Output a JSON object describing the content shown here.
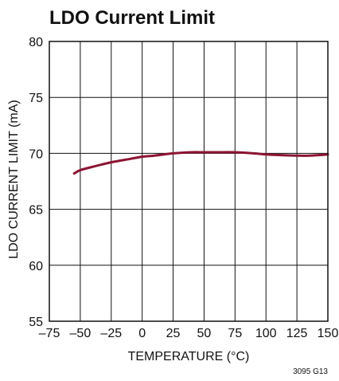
{
  "chart_data": {
    "type": "line",
    "title": "LDO Current Limit",
    "xlabel": "TEMPERATURE (°C)",
    "ylabel": "LDO CURRENT LIMIT (mA)",
    "xlim": [
      -75,
      150
    ],
    "ylim": [
      55,
      80
    ],
    "x_ticks": [
      -75,
      -50,
      -25,
      0,
      25,
      50,
      75,
      100,
      125,
      150
    ],
    "x_tick_labels": [
      "–75",
      "–50",
      "–25",
      "0",
      "25",
      "50",
      "75",
      "100",
      "125",
      "150"
    ],
    "y_ticks": [
      55,
      60,
      65,
      70,
      75,
      80
    ],
    "y_tick_labels": [
      "55",
      "60",
      "65",
      "70",
      "75",
      "80"
    ],
    "grid": true,
    "legend": "none",
    "series": [
      {
        "color": "#8c1433",
        "x": [
          -55,
          -50,
          -40,
          -25,
          -10,
          0,
          10,
          25,
          40,
          50,
          60,
          75,
          90,
          100,
          110,
          125,
          135,
          150
        ],
        "y": [
          68.2,
          68.5,
          68.8,
          69.2,
          69.5,
          69.7,
          69.8,
          70.0,
          70.1,
          70.1,
          70.1,
          70.1,
          70.0,
          69.9,
          69.85,
          69.8,
          69.8,
          69.9
        ]
      }
    ],
    "figure_code": "3095 G13"
  }
}
